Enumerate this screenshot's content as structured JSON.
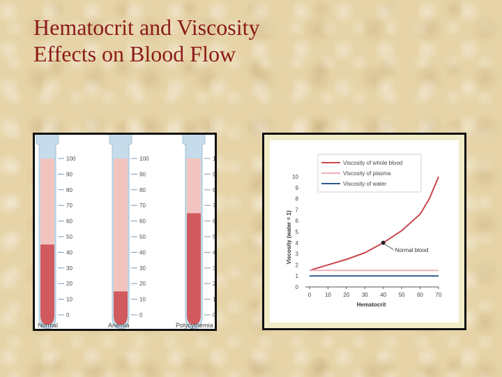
{
  "slide": {
    "title_line1": "Hematocrit and Viscosity",
    "title_line2": "Effects on Blood Flow"
  },
  "colors": {
    "title": "#8b1a1a",
    "blood": "#d05a5e",
    "tube_fill_light": "#f1c4c0",
    "tube_glass": "#c6dcea",
    "whole_blood_line": "#c8454e",
    "plasma_line": "#eeb0b4",
    "water_line": "#2c5a8c"
  },
  "chart_data": [
    {
      "type": "bar",
      "title": "",
      "categories": [
        "Normal",
        "Anemia",
        "Polycythemia"
      ],
      "values": [
        45,
        15,
        65
      ],
      "scale_ticks": [
        "100",
        "90",
        "80",
        "70",
        "60",
        "50",
        "40",
        "30",
        "20",
        "10",
        "0"
      ],
      "ylim": [
        0,
        100
      ]
    },
    {
      "type": "line",
      "title": "",
      "xlabel": "Hematocrit",
      "ylabel": "Viscosity (water = 1)",
      "xlim": [
        0,
        70
      ],
      "ylim": [
        0,
        10
      ],
      "x_ticks": [
        "0",
        "10",
        "20",
        "30",
        "40",
        "50",
        "60",
        "70"
      ],
      "y_ticks": [
        "0",
        "1",
        "2",
        "3",
        "4",
        "5",
        "6",
        "7",
        "8",
        "9",
        "10"
      ],
      "grid": false,
      "legend_position": "top-right",
      "series": [
        {
          "name": "Viscosity of whole blood",
          "x": [
            0,
            10,
            20,
            30,
            40,
            50,
            60,
            65,
            70
          ],
          "y": [
            1.5,
            2.0,
            2.5,
            3.1,
            4.0,
            5.1,
            6.6,
            8.0,
            10.0
          ]
        },
        {
          "name": "Viscosity of plasma",
          "x": [
            0,
            70
          ],
          "y": [
            1.5,
            1.5
          ]
        },
        {
          "name": "Viscosity of water",
          "x": [
            0,
            70
          ],
          "y": [
            1.0,
            1.0
          ]
        }
      ],
      "annotations": [
        {
          "text": "Normal blood",
          "x": 40,
          "y": 4.0
        }
      ]
    }
  ]
}
